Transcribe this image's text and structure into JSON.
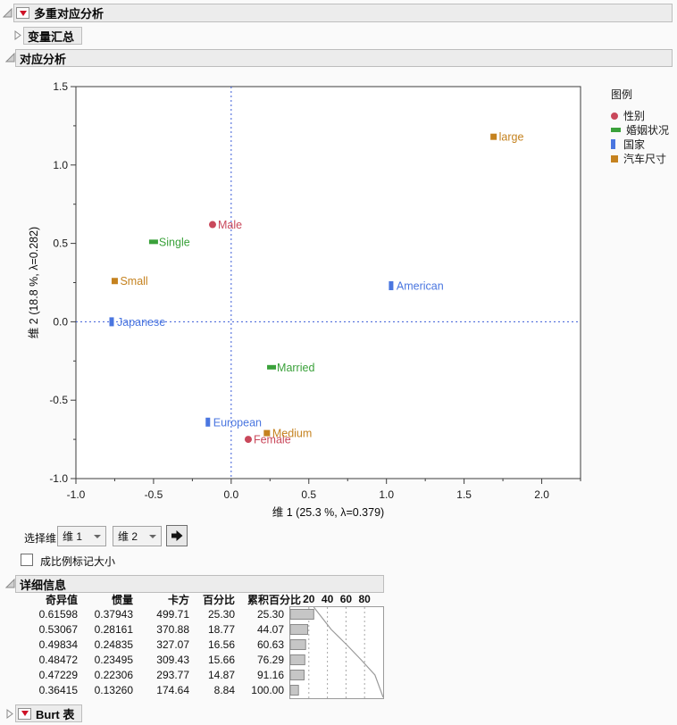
{
  "sections": {
    "mca_title": "多重对应分析",
    "variable_summary_title": "变量汇总",
    "correspondence_title": "对应分析",
    "details_title": "详细信息",
    "burt_title": "Burt 表"
  },
  "chart_data": [
    {
      "type": "scatter",
      "title": "",
      "xlabel": "维 1  (25.3 %, λ=0.379)",
      "ylabel": "维 2  (18.8 %, λ=0.282)",
      "xlim": [
        -1.0,
        2.25
      ],
      "ylim": [
        -1.0,
        1.5
      ],
      "x_ticks": [
        -1.0,
        -0.5,
        0.0,
        0.5,
        1.0,
        1.5,
        2.0
      ],
      "y_ticks": [
        -1.0,
        -0.5,
        0.0,
        0.5,
        1.0,
        1.5
      ],
      "minor_tick_step": 0.25,
      "grid": false,
      "reference_lines": {
        "x": 0.0,
        "y": 0.0
      },
      "legend_title": "图例",
      "legend_position": "right",
      "series": [
        {
          "name": "性别",
          "color": "#c9485b",
          "marker": "circle",
          "points": [
            {
              "label": "Male",
              "x": -0.12,
              "y": 0.62
            },
            {
              "label": "Female",
              "x": 0.11,
              "y": -0.75
            }
          ]
        },
        {
          "name": "婚姻状况",
          "color": "#3aa13a",
          "marker": "hrect",
          "points": [
            {
              "label": "Single",
              "x": -0.5,
              "y": 0.51
            },
            {
              "label": "Married",
              "x": 0.26,
              "y": -0.29
            }
          ]
        },
        {
          "name": "国家",
          "color": "#4a76e0",
          "marker": "vrect",
          "points": [
            {
              "label": "Japanese",
              "x": -0.77,
              "y": 0.0
            },
            {
              "label": "American",
              "x": 1.03,
              "y": 0.23
            },
            {
              "label": "European",
              "x": -0.15,
              "y": -0.64
            }
          ]
        },
        {
          "name": "汽车尺寸",
          "color": "#c5821f",
          "marker": "square",
          "points": [
            {
              "label": "Small",
              "x": -0.75,
              "y": 0.26
            },
            {
              "label": "large",
              "x": 1.69,
              "y": 1.18
            },
            {
              "label": "Medium",
              "x": 0.23,
              "y": -0.71
            }
          ]
        }
      ]
    },
    {
      "type": "bar",
      "orientation": "horizontal",
      "values": [
        25.3,
        18.77,
        16.56,
        15.66,
        14.87,
        8.84
      ],
      "cumulative_line": [
        25.3,
        44.07,
        60.63,
        76.29,
        91.16,
        100.0
      ],
      "x_ticks": [
        20,
        40,
        60,
        80
      ],
      "xlim": [
        0,
        100
      ]
    }
  ],
  "controls": {
    "select_dim_label": "选择维",
    "dim_select_1": "维 1",
    "dim_select_2": "维 2",
    "proportional_checkbox_label": "成比例标记大小",
    "proportional_checked": false
  },
  "details_table": {
    "columns": [
      "奇异值",
      "惯量",
      "卡方",
      "百分比",
      "累积百分比"
    ],
    "rows": [
      [
        "0.61598",
        "0.37943",
        "499.71",
        "25.30",
        "25.30"
      ],
      [
        "0.53067",
        "0.28161",
        "370.88",
        "18.77",
        "44.07"
      ],
      [
        "0.49834",
        "0.24835",
        "327.07",
        "16.56",
        "60.63"
      ],
      [
        "0.48472",
        "0.23495",
        "309.43",
        "15.66",
        "76.29"
      ],
      [
        "0.47229",
        "0.22306",
        "293.77",
        "14.87",
        "91.16"
      ],
      [
        "0.36415",
        "0.13260",
        "174.64",
        "8.84",
        "100.00"
      ]
    ]
  },
  "colors": {
    "reference_line": "#3a5bd7",
    "plot_frame": "#3c3c3c",
    "bar_fill": "#c6c6c6",
    "bar_border": "#8a8a8a",
    "cumulative_line": "#9a9a9a",
    "red_triangle": "#ce1126",
    "title_bar_bg": "#ececec"
  }
}
